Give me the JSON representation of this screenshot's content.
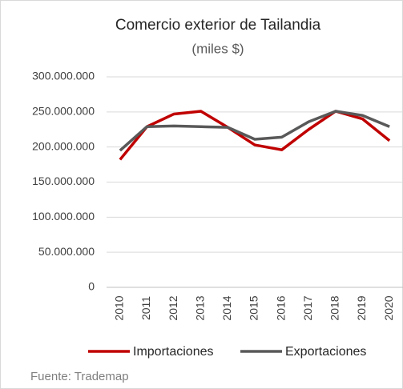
{
  "chart_data": {
    "type": "line",
    "title": "Comercio exterior  de Tailandia",
    "subtitle": "(miles $)",
    "categories": [
      "2010",
      "2011",
      "2012",
      "2013",
      "2014",
      "2015",
      "2016",
      "2017",
      "2018",
      "2019",
      "2020"
    ],
    "series": [
      {
        "name": "Importaciones",
        "color": "#c00000",
        "values": [
          182000000,
          229000000,
          247000000,
          251000000,
          228000000,
          203000000,
          196000000,
          225000000,
          251000000,
          240000000,
          209000000
        ]
      },
      {
        "name": "Exportaciones",
        "color": "#595959",
        "values": [
          195000000,
          229000000,
          230000000,
          229000000,
          228000000,
          211000000,
          214000000,
          236000000,
          251000000,
          245000000,
          229000000
        ]
      }
    ],
    "ylim": [
      0,
      300000000
    ],
    "yticks": [
      0,
      {
        "value": 50000000,
        "label": "50.000.000"
      },
      {
        "value": 100000000,
        "label": "100.000.000"
      },
      {
        "value": 150000000,
        "label": "150.000.000"
      },
      {
        "value": 200000000,
        "label": "200.000.000"
      },
      {
        "value": 250000000,
        "label": "250.000.000"
      },
      {
        "value": 300000000,
        "label": "300.000.000"
      }
    ],
    "grid": true,
    "legend": "bottom",
    "source": "Fuente: Trademap"
  }
}
